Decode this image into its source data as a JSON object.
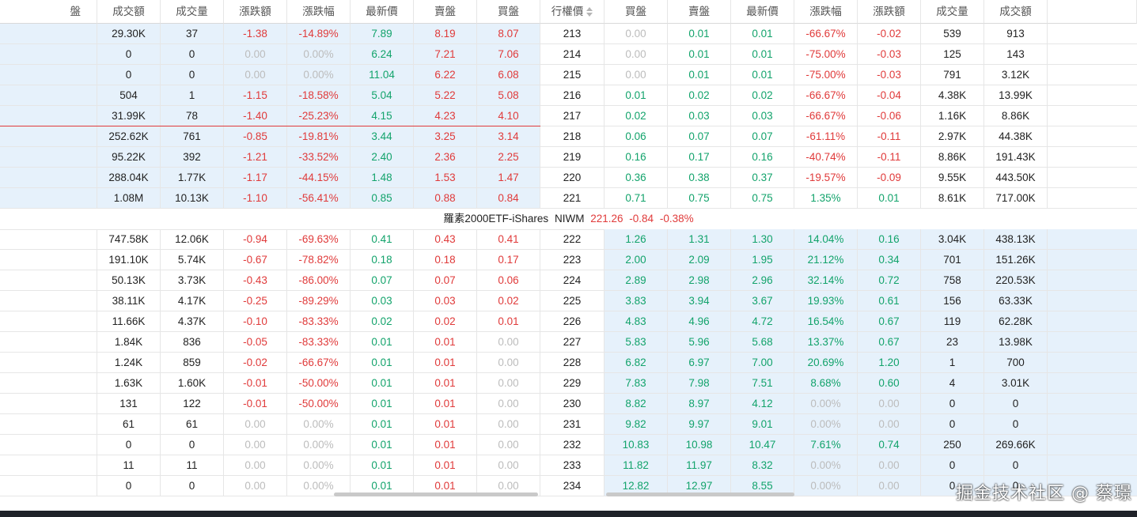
{
  "header": [
    "盤",
    "成交額",
    "成交量",
    "漲跌額",
    "漲跌幅",
    "最新價",
    "賣盤",
    "買盤",
    "行權價",
    "買盤",
    "賣盤",
    "最新價",
    "漲跌幅",
    "漲跌額",
    "成交量",
    "成交額",
    ""
  ],
  "etf_bar": {
    "name": "羅素2000ETF-iShares",
    "code": "NIWM",
    "price": "221.26",
    "change": "-0.84",
    "pct": "-0.38%"
  },
  "top_rows": [
    [
      "",
      "29.30K",
      "37",
      "-1.38",
      "-14.89%",
      "7.89",
      "8.19",
      "8.07",
      "213",
      "0.00",
      "0.01",
      "0.01",
      "-66.67%",
      "-0.02",
      "539",
      "913",
      ""
    ],
    [
      "",
      "0",
      "0",
      "0.00",
      "0.00%",
      "6.24",
      "7.21",
      "7.06",
      "214",
      "0.00",
      "0.01",
      "0.01",
      "-75.00%",
      "-0.03",
      "125",
      "143",
      ""
    ],
    [
      "",
      "0",
      "0",
      "0.00",
      "0.00%",
      "11.04",
      "6.22",
      "6.08",
      "215",
      "0.00",
      "0.01",
      "0.01",
      "-75.00%",
      "-0.03",
      "791",
      "3.12K",
      ""
    ],
    [
      "",
      "504",
      "1",
      "-1.15",
      "-18.58%",
      "5.04",
      "5.22",
      "5.08",
      "216",
      "0.01",
      "0.02",
      "0.02",
      "-66.67%",
      "-0.04",
      "4.38K",
      "13.99K",
      ""
    ],
    [
      "",
      "31.99K",
      "78",
      "-1.40",
      "-25.23%",
      "4.15",
      "4.23",
      "4.10",
      "217",
      "0.02",
      "0.03",
      "0.03",
      "-66.67%",
      "-0.06",
      "1.16K",
      "8.86K",
      ""
    ],
    [
      "",
      "252.62K",
      "761",
      "-0.85",
      "-19.81%",
      "3.44",
      "3.25",
      "3.14",
      "218",
      "0.06",
      "0.07",
      "0.07",
      "-61.11%",
      "-0.11",
      "2.97K",
      "44.38K",
      ""
    ],
    [
      "",
      "95.22K",
      "392",
      "-1.21",
      "-33.52%",
      "2.40",
      "2.36",
      "2.25",
      "219",
      "0.16",
      "0.17",
      "0.16",
      "-40.74%",
      "-0.11",
      "8.86K",
      "191.43K",
      ""
    ],
    [
      "",
      "288.04K",
      "1.77K",
      "-1.17",
      "-44.15%",
      "1.48",
      "1.53",
      "1.47",
      "220",
      "0.36",
      "0.38",
      "0.37",
      "-19.57%",
      "-0.09",
      "9.55K",
      "443.50K",
      ""
    ],
    [
      "",
      "1.08M",
      "10.13K",
      "-1.10",
      "-56.41%",
      "0.85",
      "0.88",
      "0.84",
      "221",
      "0.71",
      "0.75",
      "0.75",
      "1.35%",
      "0.01",
      "8.61K",
      "717.00K",
      ""
    ]
  ],
  "bottom_rows": [
    [
      "",
      "747.58K",
      "12.06K",
      "-0.94",
      "-69.63%",
      "0.41",
      "0.43",
      "0.41",
      "222",
      "1.26",
      "1.31",
      "1.30",
      "14.04%",
      "0.16",
      "3.04K",
      "438.13K",
      ""
    ],
    [
      "",
      "191.10K",
      "5.74K",
      "-0.67",
      "-78.82%",
      "0.18",
      "0.18",
      "0.17",
      "223",
      "2.00",
      "2.09",
      "1.95",
      "21.12%",
      "0.34",
      "701",
      "151.26K",
      ""
    ],
    [
      "",
      "50.13K",
      "3.73K",
      "-0.43",
      "-86.00%",
      "0.07",
      "0.07",
      "0.06",
      "224",
      "2.89",
      "2.98",
      "2.96",
      "32.14%",
      "0.72",
      "758",
      "220.53K",
      ""
    ],
    [
      "",
      "38.11K",
      "4.17K",
      "-0.25",
      "-89.29%",
      "0.03",
      "0.03",
      "0.02",
      "225",
      "3.83",
      "3.94",
      "3.67",
      "19.93%",
      "0.61",
      "156",
      "63.33K",
      ""
    ],
    [
      "",
      "11.66K",
      "4.37K",
      "-0.10",
      "-83.33%",
      "0.02",
      "0.02",
      "0.01",
      "226",
      "4.83",
      "4.96",
      "4.72",
      "16.54%",
      "0.67",
      "119",
      "62.28K",
      ""
    ],
    [
      "",
      "1.84K",
      "836",
      "-0.05",
      "-83.33%",
      "0.01",
      "0.01",
      "0.00",
      "227",
      "5.83",
      "5.96",
      "5.68",
      "13.37%",
      "0.67",
      "23",
      "13.98K",
      ""
    ],
    [
      "",
      "1.24K",
      "859",
      "-0.02",
      "-66.67%",
      "0.01",
      "0.01",
      "0.00",
      "228",
      "6.82",
      "6.97",
      "7.00",
      "20.69%",
      "1.20",
      "1",
      "700",
      ""
    ],
    [
      "",
      "1.63K",
      "1.60K",
      "-0.01",
      "-50.00%",
      "0.01",
      "0.01",
      "0.00",
      "229",
      "7.83",
      "7.98",
      "7.51",
      "8.68%",
      "0.60",
      "4",
      "3.01K",
      ""
    ],
    [
      "",
      "131",
      "122",
      "-0.01",
      "-50.00%",
      "0.01",
      "0.01",
      "0.00",
      "230",
      "8.82",
      "8.97",
      "4.12",
      "0.00%",
      "0.00",
      "0",
      "0",
      ""
    ],
    [
      "",
      "61",
      "61",
      "0.00",
      "0.00%",
      "0.01",
      "0.01",
      "0.00",
      "231",
      "9.82",
      "9.97",
      "9.01",
      "0.00%",
      "0.00",
      "0",
      "0",
      ""
    ],
    [
      "",
      "0",
      "0",
      "0.00",
      "0.00%",
      "0.01",
      "0.01",
      "0.00",
      "232",
      "10.83",
      "10.98",
      "10.47",
      "7.61%",
      "0.74",
      "250",
      "269.66K",
      ""
    ],
    [
      "",
      "11",
      "11",
      "0.00",
      "0.00%",
      "0.01",
      "0.01",
      "0.00",
      "233",
      "11.82",
      "11.97",
      "8.32",
      "0.00%",
      "0.00",
      "0",
      "0",
      ""
    ],
    [
      "",
      "0",
      "0",
      "0.00",
      "0.00%",
      "0.01",
      "0.01",
      "0.00",
      "234",
      "12.82",
      "12.97",
      "8.55",
      "0.00%",
      "0.00",
      "0",
      "0",
      ""
    ]
  ],
  "colors": {
    "up": "#e03a3a",
    "down": "#12a36b",
    "flat": "#bcbcbc",
    "highlight": "#e6f1fb"
  },
  "icons": {
    "sort": "sort-icon"
  },
  "watermark": "掘金技术社区 @ 蔡璟"
}
